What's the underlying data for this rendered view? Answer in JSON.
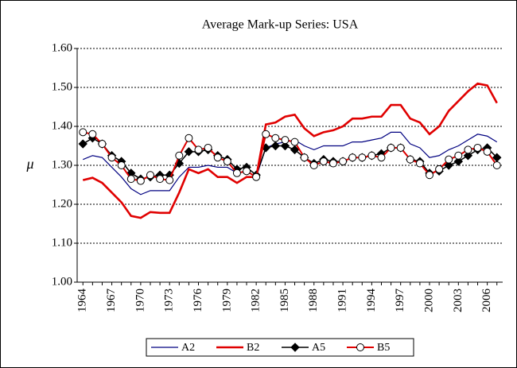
{
  "chart_data": {
    "type": "line",
    "title": "Average Mark-up Series: USA",
    "ylabel": "μ",
    "x": [
      1964,
      1965,
      1966,
      1967,
      1968,
      1969,
      1970,
      1971,
      1972,
      1973,
      1974,
      1975,
      1976,
      1977,
      1978,
      1979,
      1980,
      1981,
      1982,
      1983,
      1984,
      1985,
      1986,
      1987,
      1988,
      1989,
      1990,
      1991,
      1992,
      1993,
      1994,
      1995,
      1996,
      1997,
      1998,
      1999,
      2000,
      2001,
      2002,
      2003,
      2004,
      2005,
      2006,
      2007
    ],
    "xlim": [
      1963.4,
      2007.6
    ],
    "xticks": [
      1964,
      1967,
      1970,
      1973,
      1976,
      1979,
      1982,
      1985,
      1988,
      1991,
      1994,
      1997,
      2000,
      2003,
      2006
    ],
    "ylim": [
      1.0,
      1.6
    ],
    "yticks": [
      {
        "value": 1.0,
        "label": "1.00"
      },
      {
        "value": 1.1,
        "label": "1.10"
      },
      {
        "value": 1.2,
        "label": "1.20"
      },
      {
        "value": 1.3,
        "label": "1.30"
      },
      {
        "value": 1.4,
        "label": "1.40"
      },
      {
        "value": 1.5,
        "label": "1.50"
      },
      {
        "value": 1.6,
        "label": "1.60"
      }
    ],
    "grid": true,
    "legend": "bottom",
    "series": [
      {
        "name": "A2",
        "color": "#000080",
        "width": 1.2,
        "marker": null,
        "values": [
          1.315,
          1.325,
          1.32,
          1.295,
          1.27,
          1.24,
          1.225,
          1.235,
          1.235,
          1.235,
          1.27,
          1.295,
          1.295,
          1.3,
          1.295,
          1.295,
          1.28,
          1.285,
          1.27,
          1.345,
          1.355,
          1.36,
          1.365,
          1.35,
          1.34,
          1.35,
          1.35,
          1.35,
          1.36,
          1.36,
          1.365,
          1.37,
          1.385,
          1.385,
          1.355,
          1.345,
          1.32,
          1.325,
          1.34,
          1.35,
          1.365,
          1.38,
          1.375,
          1.36
        ]
      },
      {
        "name": "B2",
        "color": "#e00000",
        "width": 2.6,
        "marker": null,
        "values": [
          1.262,
          1.268,
          1.255,
          1.23,
          1.205,
          1.17,
          1.165,
          1.18,
          1.178,
          1.178,
          1.23,
          1.29,
          1.28,
          1.29,
          1.27,
          1.27,
          1.255,
          1.27,
          1.27,
          1.405,
          1.41,
          1.425,
          1.43,
          1.395,
          1.375,
          1.385,
          1.39,
          1.4,
          1.42,
          1.42,
          1.425,
          1.425,
          1.455,
          1.455,
          1.42,
          1.41,
          1.38,
          1.4,
          1.44,
          1.465,
          1.49,
          1.51,
          1.505,
          1.46
        ]
      },
      {
        "name": "A5",
        "color": "#000000",
        "width": 1.5,
        "marker": "diamond",
        "values": [
          1.355,
          1.37,
          1.355,
          1.325,
          1.31,
          1.28,
          1.265,
          1.27,
          1.275,
          1.275,
          1.305,
          1.335,
          1.335,
          1.34,
          1.325,
          1.315,
          1.29,
          1.295,
          1.275,
          1.345,
          1.35,
          1.35,
          1.34,
          1.32,
          1.305,
          1.315,
          1.31,
          1.31,
          1.32,
          1.32,
          1.325,
          1.33,
          1.345,
          1.345,
          1.315,
          1.31,
          1.28,
          1.285,
          1.3,
          1.31,
          1.325,
          1.34,
          1.345,
          1.32
        ]
      },
      {
        "name": "B5",
        "color": "#e00000",
        "width": 2,
        "marker": "circle",
        "values": [
          1.385,
          1.38,
          1.355,
          1.32,
          1.3,
          1.265,
          1.26,
          1.275,
          1.265,
          1.262,
          1.325,
          1.37,
          1.34,
          1.345,
          1.32,
          1.31,
          1.28,
          1.285,
          1.27,
          1.38,
          1.37,
          1.365,
          1.36,
          1.32,
          1.3,
          1.31,
          1.305,
          1.31,
          1.32,
          1.32,
          1.325,
          1.32,
          1.345,
          1.345,
          1.315,
          1.305,
          1.275,
          1.29,
          1.315,
          1.325,
          1.34,
          1.345,
          1.335,
          1.3
        ]
      }
    ]
  }
}
